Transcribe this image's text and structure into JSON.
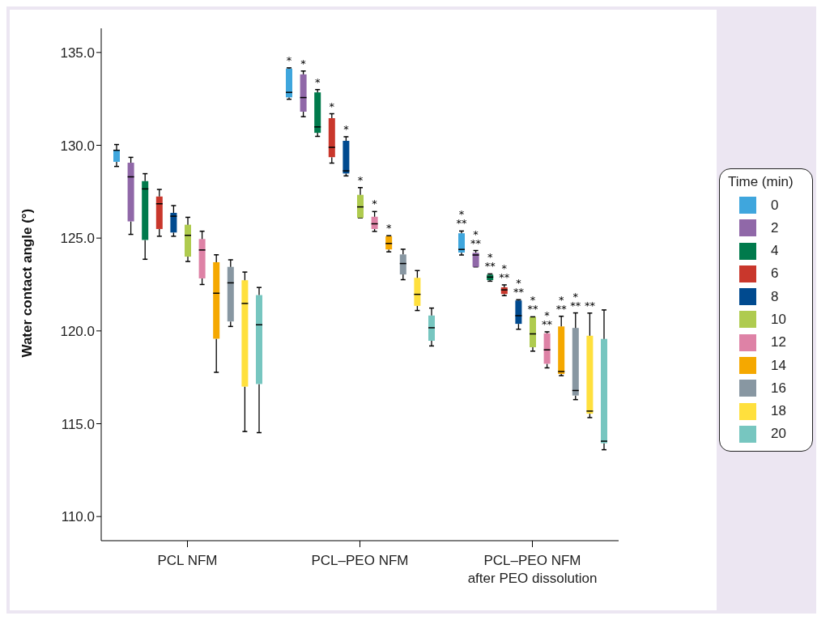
{
  "chart_data": {
    "type": "box",
    "ylabel": "Water contact angle (°)",
    "legend_title": "Time (min)",
    "legend": "right",
    "categories": [
      "PCL NFM",
      "PCL–PEO NFM",
      "PCL–PEO NFM\nafter PEO dissolution"
    ],
    "ylim": [
      108.7,
      136.3
    ],
    "yticks": [
      {
        "value": 110,
        "label": "110.0"
      },
      {
        "value": 115,
        "label": "115.0"
      },
      {
        "value": 120,
        "label": "120.0"
      },
      {
        "value": 125,
        "label": "125.0"
      },
      {
        "value": 130,
        "label": "130.0"
      },
      {
        "value": 135,
        "label": "135.0"
      }
    ],
    "series": [
      {
        "name": "0",
        "color": "#3fa6dd",
        "boxes": [
          {
            "low": 128.86,
            "q1": 129.11,
            "median": 129.73,
            "q3": 129.73,
            "high": 130.04
          },
          {
            "low": 132.48,
            "q1": 132.58,
            "median": 132.85,
            "q3": 134.13,
            "high": 134.17
          },
          {
            "low": 124.09,
            "q1": 124.22,
            "median": 124.39,
            "q3": 125.26,
            "high": 125.38
          }
        ]
      },
      {
        "name": "2",
        "color": "#9068a8",
        "boxes": [
          {
            "low": 125.2,
            "q1": 125.9,
            "median": 128.3,
            "q3": 129.06,
            "high": 129.35
          },
          {
            "low": 131.54,
            "q1": 131.81,
            "median": 132.57,
            "q3": 133.82,
            "high": 134.0
          },
          {
            "low": 123.45,
            "q1": 123.45,
            "median": 124.09,
            "q3": 124.21,
            "high": 124.33
          }
        ]
      },
      {
        "name": "4",
        "color": "#007a4c",
        "boxes": [
          {
            "low": 123.86,
            "q1": 124.9,
            "median": 127.65,
            "q3": 128.07,
            "high": 128.47
          },
          {
            "low": 130.48,
            "q1": 130.67,
            "median": 130.99,
            "q3": 132.85,
            "high": 133.0
          },
          {
            "low": 122.68,
            "q1": 122.74,
            "median": 122.9,
            "q3": 123.03,
            "high": 123.07
          }
        ]
      },
      {
        "name": "6",
        "color": "#c9372c",
        "boxes": [
          {
            "low": 125.1,
            "q1": 125.49,
            "median": 126.85,
            "q3": 127.24,
            "high": 127.62
          },
          {
            "low": 129.04,
            "q1": 129.36,
            "median": 129.89,
            "q3": 131.46,
            "high": 131.7
          },
          {
            "low": 121.9,
            "q1": 121.99,
            "median": 122.21,
            "q3": 122.35,
            "high": 122.48
          }
        ]
      },
      {
        "name": "8",
        "color": "#004a8f",
        "boxes": [
          {
            "low": 125.1,
            "q1": 125.3,
            "median": 126.18,
            "q3": 126.36,
            "high": 126.75
          },
          {
            "low": 128.35,
            "q1": 128.48,
            "median": 128.62,
            "q3": 130.24,
            "high": 130.46
          },
          {
            "low": 120.09,
            "q1": 120.38,
            "median": 120.82,
            "q3": 121.64,
            "high": 121.68
          }
        ]
      },
      {
        "name": "10",
        "color": "#afcb4f",
        "boxes": [
          {
            "low": 123.74,
            "q1": 124.0,
            "median": 125.15,
            "q3": 125.72,
            "high": 126.12
          },
          {
            "low": 126.09,
            "q1": 126.09,
            "median": 126.68,
            "q3": 127.33,
            "high": 127.72
          },
          {
            "low": 118.91,
            "q1": 119.12,
            "median": 119.84,
            "q3": 120.76,
            "high": 120.76
          }
        ]
      },
      {
        "name": "12",
        "color": "#de82a6",
        "boxes": [
          {
            "low": 122.5,
            "q1": 122.83,
            "median": 124.36,
            "q3": 124.95,
            "high": 125.37
          },
          {
            "low": 125.36,
            "q1": 125.49,
            "median": 125.77,
            "q3": 126.15,
            "high": 126.43
          },
          {
            "low": 118.01,
            "q1": 118.23,
            "median": 118.98,
            "q3": 119.87,
            "high": 119.95
          }
        ]
      },
      {
        "name": "14",
        "color": "#f5a800",
        "boxes": [
          {
            "low": 117.77,
            "q1": 119.58,
            "median": 122.03,
            "q3": 123.7,
            "high": 124.1
          },
          {
            "low": 124.26,
            "q1": 124.39,
            "median": 124.71,
            "q3": 125.1,
            "high": 125.13
          },
          {
            "low": 117.59,
            "q1": 117.68,
            "median": 117.81,
            "q3": 120.24,
            "high": 120.79
          }
        ]
      },
      {
        "name": "16",
        "color": "#8897a2",
        "boxes": [
          {
            "low": 120.24,
            "q1": 120.51,
            "median": 122.59,
            "q3": 123.45,
            "high": 123.83
          },
          {
            "low": 122.76,
            "q1": 123.04,
            "median": 123.63,
            "q3": 124.12,
            "high": 124.4
          },
          {
            "low": 116.3,
            "q1": 116.52,
            "median": 116.79,
            "q3": 120.16,
            "high": 120.97
          }
        ]
      },
      {
        "name": "18",
        "color": "#ffe03d",
        "boxes": [
          {
            "low": 114.58,
            "q1": 117.0,
            "median": 121.48,
            "q3": 122.73,
            "high": 123.17
          },
          {
            "low": 121.1,
            "q1": 121.35,
            "median": 121.97,
            "q3": 122.86,
            "high": 123.25
          },
          {
            "low": 115.33,
            "q1": 115.54,
            "median": 115.68,
            "q3": 119.74,
            "high": 120.96
          }
        ]
      },
      {
        "name": "20",
        "color": "#77c6c0",
        "boxes": [
          {
            "low": 114.52,
            "q1": 117.14,
            "median": 120.33,
            "q3": 121.93,
            "high": 122.34
          },
          {
            "low": 119.19,
            "q1": 119.47,
            "median": 120.17,
            "q3": 120.83,
            "high": 121.23
          },
          {
            "low": 113.6,
            "q1": 113.95,
            "median": 114.06,
            "q3": 119.57,
            "high": 121.13
          }
        ]
      }
    ],
    "annotations": [
      "*",
      "*",
      "*",
      "*",
      "*",
      "*",
      "*",
      "*",
      "*",
      "**",
      "*",
      "**",
      "*",
      "**",
      "*",
      "**",
      "*",
      "**",
      "*",
      "**",
      "*",
      "**",
      "*",
      "**",
      "*",
      "**",
      "**"
    ]
  }
}
